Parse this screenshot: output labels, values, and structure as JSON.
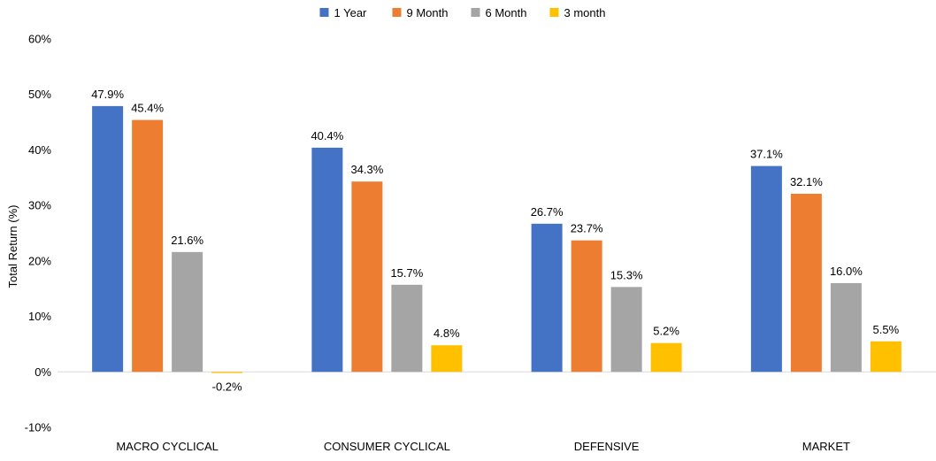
{
  "chart_data": {
    "type": "bar",
    "ylabel": "Total Return (%)",
    "xlabel": "",
    "ylim": [
      -10,
      60
    ],
    "yticks": [
      -10,
      0,
      10,
      20,
      30,
      40,
      50,
      60
    ],
    "ytick_labels": [
      "-10%",
      "0%",
      "10%",
      "20%",
      "30%",
      "40%",
      "50%",
      "60%"
    ],
    "categories": [
      "MACRO CYCLICAL",
      "CONSUMER CYCLICAL",
      "DEFENSIVE",
      "MARKET"
    ],
    "series": [
      {
        "name": "1 Year",
        "color": "#4472C4",
        "values": [
          47.9,
          40.4,
          26.7,
          37.1
        ],
        "labels": [
          "47.9%",
          "40.4%",
          "26.7%",
          "37.1%"
        ]
      },
      {
        "name": "9 Month",
        "color": "#ED7D31",
        "values": [
          45.4,
          34.3,
          23.7,
          32.1
        ],
        "labels": [
          "45.4%",
          "34.3%",
          "23.7%",
          "32.1%"
        ]
      },
      {
        "name": "6 Month",
        "color": "#A5A5A5",
        "values": [
          21.6,
          15.7,
          15.3,
          16.0
        ],
        "labels": [
          "21.6%",
          "15.7%",
          "15.3%",
          "16.0%"
        ]
      },
      {
        "name": "3 month",
        "color": "#FFC000",
        "values": [
          -0.2,
          4.8,
          5.2,
          5.5
        ],
        "labels": [
          "-0.2%",
          "4.8%",
          "5.2%",
          "5.5%"
        ]
      }
    ],
    "legend": "top-center",
    "grid": false
  }
}
